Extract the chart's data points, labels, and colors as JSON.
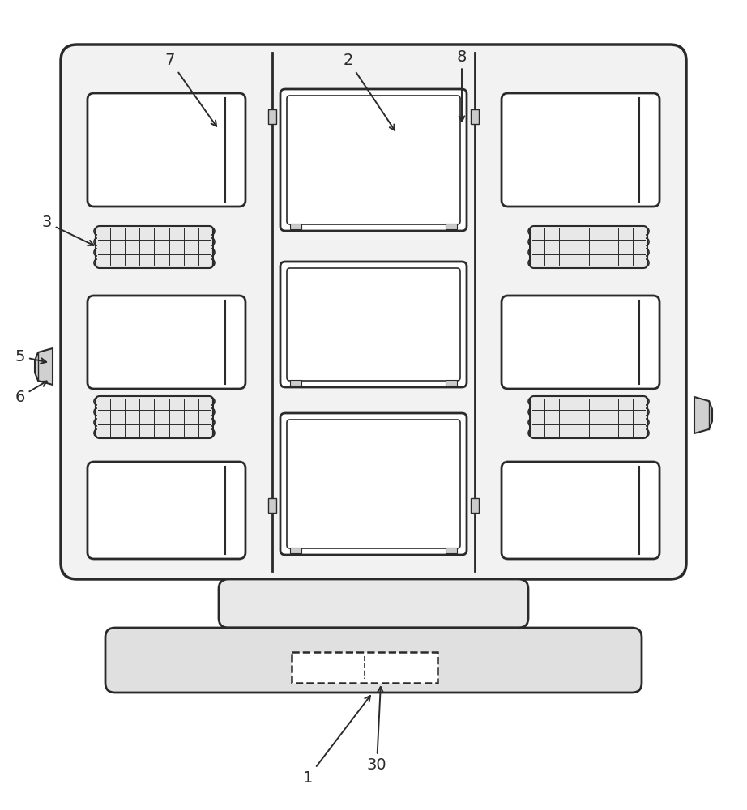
{
  "bg_color": "#ffffff",
  "lc": "#2a2a2a",
  "lw": 2.0,
  "panel_fc": "#f0f0f0",
  "screen_fc": "#ffffff",
  "kb_fc": "#e0e0e0",
  "base_fc": "#e8e8e8"
}
